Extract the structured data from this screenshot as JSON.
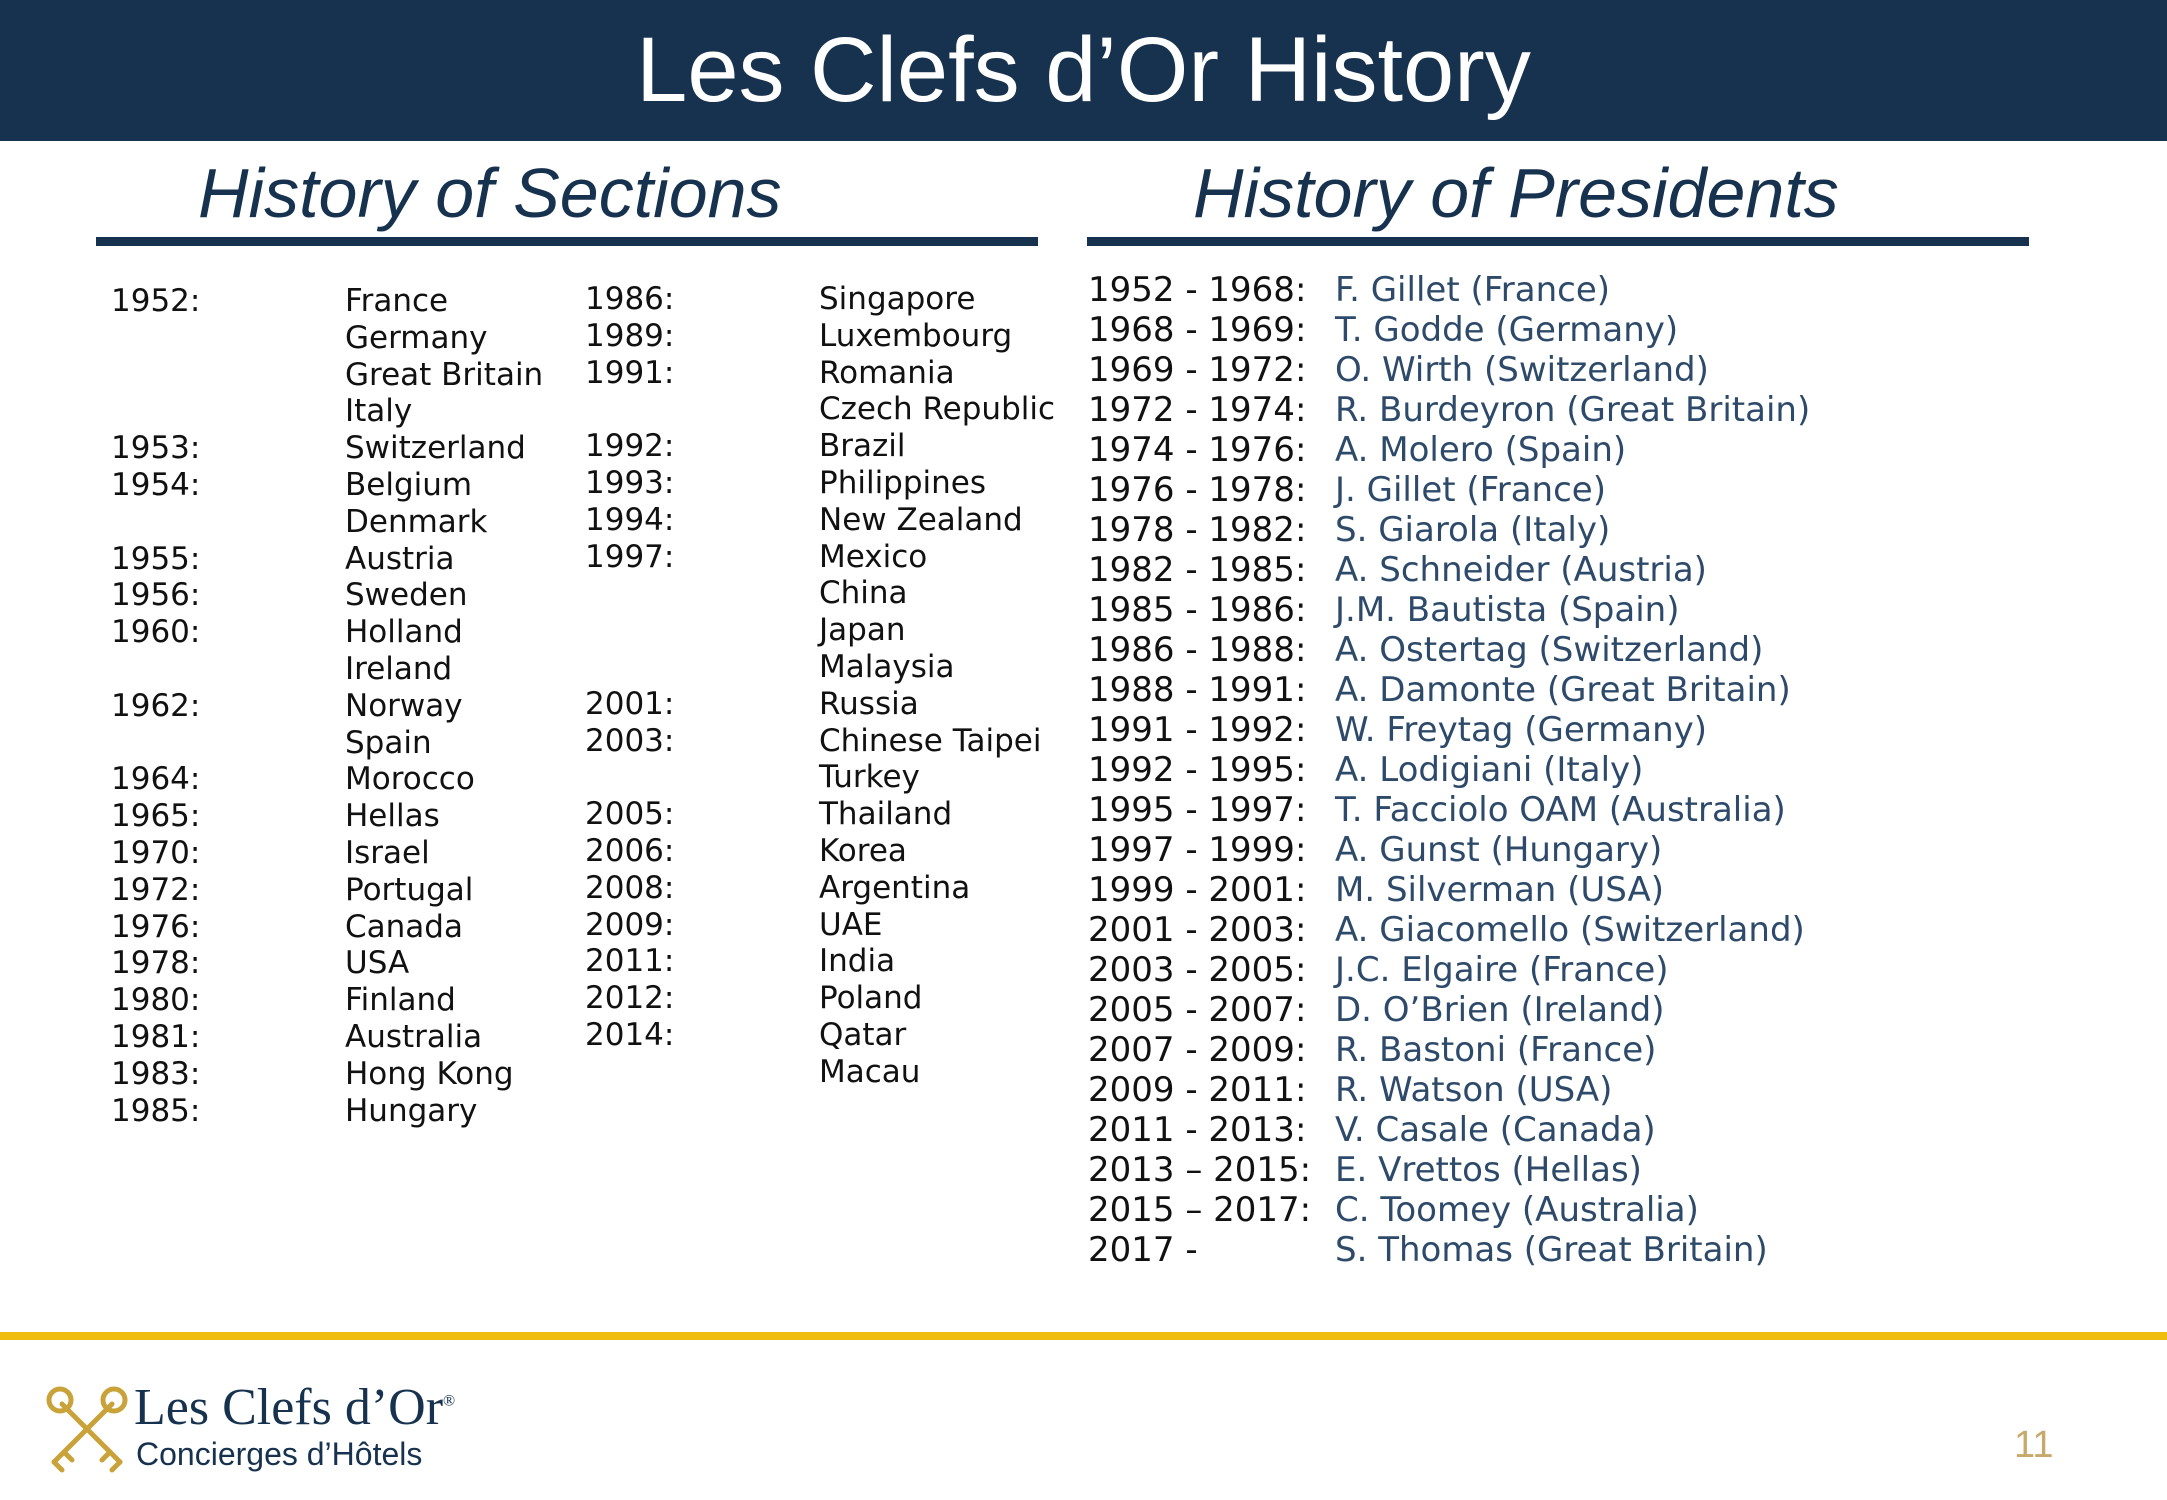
{
  "title": "Les Clefs d’Or History",
  "sections": {
    "heading": "History of Sections",
    "col1_years": [
      "1952:",
      "",
      "",
      "",
      "1953:",
      "1954:",
      "",
      "1955:",
      "1956:",
      "1960:",
      "",
      "1962:",
      "",
      "1964:",
      "1965:",
      "1970:",
      "1972:",
      "1976:",
      "1978:",
      "1980:",
      "1981:",
      "1983:",
      "1985:"
    ],
    "col1_countries": [
      "France",
      "Germany",
      "Great Britain",
      "Italy",
      "Switzerland",
      "Belgium",
      "Denmark",
      "Austria",
      "Sweden",
      "Holland",
      "Ireland",
      "Norway",
      "Spain",
      "Morocco",
      "Hellas",
      "Israel",
      "Portugal",
      "Canada",
      "USA",
      "Finland",
      "Australia",
      "Hong Kong",
      "Hungary"
    ],
    "col2_years": [
      "1986:",
      "1989:",
      "1991:",
      "",
      "1992:",
      "1993:",
      "1994:",
      "1997:",
      "",
      "",
      "",
      "2001:",
      "2003:",
      "",
      "2005:",
      "2006:",
      "2008:",
      "2009:",
      "2011:",
      "2012:",
      "2014:",
      ""
    ],
    "col2_countries": [
      "Singapore",
      "Luxembourg",
      "Romania",
      "Czech Republic",
      "Brazil",
      "Philippines",
      "New Zealand",
      "Mexico",
      "China",
      "Japan",
      "Malaysia",
      "Russia",
      "Chinese Taipei",
      "Turkey",
      "Thailand",
      "Korea",
      "Argentina",
      "UAE",
      "India",
      "Poland",
      "Qatar",
      "Macau"
    ]
  },
  "presidents": {
    "heading": "History of Presidents",
    "years": [
      "1952 - 1968:",
      "1968 - 1969:",
      "1969 - 1972:",
      "1972 - 1974:",
      "1974 - 1976:",
      "1976 - 1978:",
      "1978 - 1982:",
      "1982 - 1985:",
      "1985 - 1986:",
      "1986 - 1988:",
      "1988 - 1991:",
      "1991 - 1992:",
      "1992 - 1995:",
      "1995 - 1997:",
      "1997 - 1999:",
      "1999 - 2001:",
      "2001 - 2003:",
      "2003 - 2005:",
      "2005 - 2007:",
      "2007 - 2009:",
      "2009 - 2011:",
      "2011 - 2013:",
      "2013 – 2015:",
      "2015 – 2017:",
      "2017 -"
    ],
    "names": [
      "F. Gillet (France)",
      "T. Godde (Germany)",
      "O. Wirth (Switzerland)",
      "R. Burdeyron (Great Britain)",
      "A. Molero (Spain)",
      "J. Gillet (France)",
      "S. Giarola (Italy)",
      "A. Schneider (Austria)",
      "J.M. Bautista (Spain)",
      "A. Ostertag (Switzerland)",
      "A. Damonte (Great Britain)",
      "W. Freytag (Germany)",
      "A. Lodigiani (Italy)",
      "T. Facciolo OAM (Australia)",
      "A. Gunst (Hungary)",
      "M. Silverman (USA)",
      "A. Giacomello (Switzerland)",
      "J.C. Elgaire (France)",
      "D. O’Brien (Ireland)",
      "R. Bastoni (France)",
      "R. Watson (USA)",
      "V. Casale (Canada)",
      "E. Vrettos (Hellas)",
      "C. Toomey (Australia)",
      "S. Thomas (Great Britain)"
    ]
  },
  "footer": {
    "logo_title": "Les Clefs d’Or",
    "logo_registered": "®",
    "logo_subtitle": "Concierges d’Hôtels",
    "page_number": "11"
  },
  "colors": {
    "navy": "#17324e",
    "gold": "#f0bc0e",
    "president_name": "#2e4a6a"
  }
}
